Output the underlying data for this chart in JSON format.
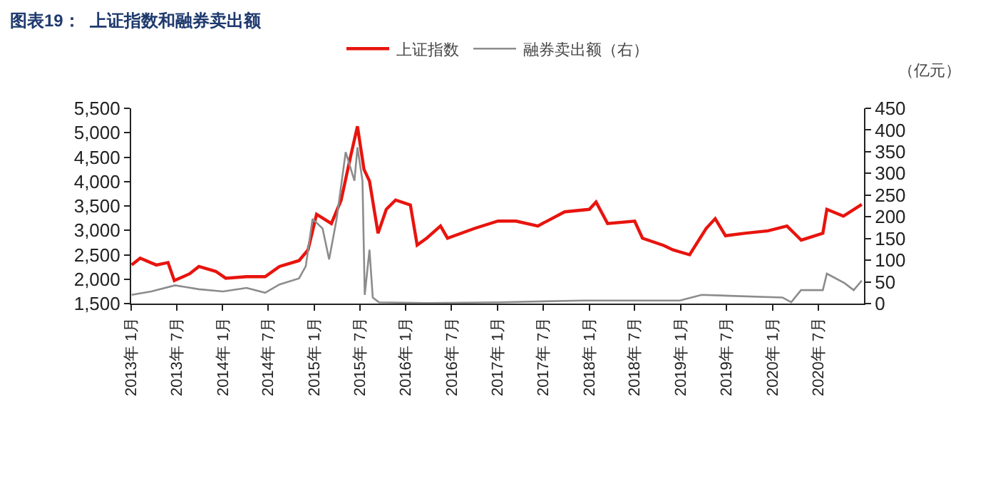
{
  "chart_data": {
    "type": "line",
    "title": "图表19：  上证指数和融券卖出额",
    "y2label": "（亿元）",
    "legend": "top",
    "marker": "none",
    "line_style": "solid",
    "xlim": [
      "2013-01-01",
      "2020-12-31"
    ],
    "xticks": [
      {
        "value": "2013-01-01",
        "label": "2013年 1月"
      },
      {
        "value": "2013-07-01",
        "label": "2013年 7月"
      },
      {
        "value": "2014-01-01",
        "label": "2014年 1月"
      },
      {
        "value": "2014-07-01",
        "label": "2014年 7月"
      },
      {
        "value": "2015-01-01",
        "label": "2015年 1月"
      },
      {
        "value": "2015-07-01",
        "label": "2015年 7月"
      },
      {
        "value": "2016-01-01",
        "label": "2016年 1月"
      },
      {
        "value": "2016-07-01",
        "label": "2016年 7月"
      },
      {
        "value": "2017-01-01",
        "label": "2017年 1月"
      },
      {
        "value": "2017-07-01",
        "label": "2017年 7月"
      },
      {
        "value": "2018-01-01",
        "label": "2018年 1月"
      },
      {
        "value": "2018-07-01",
        "label": "2018年 7月"
      },
      {
        "value": "2019-01-01",
        "label": "2019年 1月"
      },
      {
        "value": "2019-07-01",
        "label": "2019年 7月"
      },
      {
        "value": "2020-01-01",
        "label": "2020年 1月"
      },
      {
        "value": "2020-07-01",
        "label": "2020年 7月"
      }
    ],
    "ylim": [
      1500,
      5500
    ],
    "yticks": [
      {
        "value": 1500,
        "label": "1,500"
      },
      {
        "value": 2000,
        "label": "2,000"
      },
      {
        "value": 2500,
        "label": "2,500"
      },
      {
        "value": 3000,
        "label": "3,000"
      },
      {
        "value": 3500,
        "label": "3,500"
      },
      {
        "value": 4000,
        "label": "4,000"
      },
      {
        "value": 4500,
        "label": "4,500"
      },
      {
        "value": 5000,
        "label": "5,000"
      },
      {
        "value": 5500,
        "label": "5,500"
      }
    ],
    "y2lim": [
      0,
      450
    ],
    "y2ticks": [
      0,
      50,
      100,
      150,
      200,
      250,
      300,
      350,
      400,
      450
    ],
    "series": [
      {
        "name": "上证指数",
        "color": "#e8140e",
        "x": [
          "2013-01-03",
          "2013-02-06",
          "2013-04-11",
          "2013-05-28",
          "2013-06-22",
          "2013-08-22",
          "2013-09-28",
          "2013-12-04",
          "2014-01-13",
          "2014-04-06",
          "2014-06-19",
          "2014-08-15",
          "2014-11-01",
          "2014-12-07",
          "2015-01-10",
          "2015-03-10",
          "2015-04-18",
          "2015-05-25",
          "2015-06-22",
          "2015-07-18",
          "2015-08-09",
          "2015-09-12",
          "2015-10-15",
          "2015-11-21",
          "2016-01-19",
          "2016-02-15",
          "2016-03-24",
          "2016-05-18",
          "2016-06-15",
          "2016-10-01",
          "2017-01-02",
          "2017-03-15",
          "2017-06-10",
          "2017-09-25",
          "2018-01-01",
          "2018-01-28",
          "2018-03-15",
          "2018-07-01",
          "2018-08-01",
          "2018-10-25",
          "2018-12-01",
          "2019-02-05",
          "2019-04-12",
          "2019-05-18",
          "2019-06-28",
          "2019-09-12",
          "2019-12-15",
          "2020-02-28",
          "2020-04-25",
          "2020-07-20",
          "2020-08-05",
          "2020-10-10",
          "2020-12-22"
        ],
        "values": [
          2290,
          2430,
          2290,
          2340,
          1970,
          2110,
          2260,
          2160,
          2020,
          2050,
          2050,
          2260,
          2380,
          2600,
          3330,
          3140,
          3620,
          4500,
          5130,
          4250,
          4010,
          2940,
          3430,
          3620,
          3520,
          2700,
          2840,
          3090,
          2840,
          3040,
          3190,
          3190,
          3090,
          3380,
          3430,
          3580,
          3140,
          3190,
          2840,
          2690,
          2600,
          2500,
          3040,
          3240,
          2890,
          2940,
          2990,
          3090,
          2800,
          2940,
          3430,
          3290,
          3530
        ]
      },
      {
        "name": "融券卖出额（右）",
        "color": "#8c8c8c",
        "axis": "y2",
        "x": [
          "2013-01-03",
          "2013-03-22",
          "2013-06-25",
          "2013-09-28",
          "2014-01-02",
          "2014-04-06",
          "2014-06-19",
          "2014-08-15",
          "2014-11-01",
          "2014-11-28",
          "2014-12-25",
          "2015-02-03",
          "2015-03-01",
          "2015-03-31",
          "2015-05-06",
          "2015-06-10",
          "2015-06-22",
          "2015-07-12",
          "2015-07-21",
          "2015-08-09",
          "2015-08-22",
          "2015-09-16",
          "2016-03-24",
          "2017-01-02",
          "2017-12-10",
          "2018-12-28",
          "2019-03-25",
          "2020-02-10",
          "2020-03-16",
          "2020-04-24",
          "2020-07-20",
          "2020-08-05",
          "2020-10-15",
          "2020-11-20",
          "2020-12-22"
        ],
        "values": [
          20,
          28,
          42,
          33,
          28,
          36,
          25,
          44,
          58,
          86,
          195,
          173,
          102,
          195,
          349,
          283,
          360,
          283,
          20,
          124,
          14,
          3,
          1,
          3,
          7,
          7,
          20,
          14,
          3,
          31,
          31,
          69,
          47,
          31,
          53
        ]
      }
    ]
  }
}
